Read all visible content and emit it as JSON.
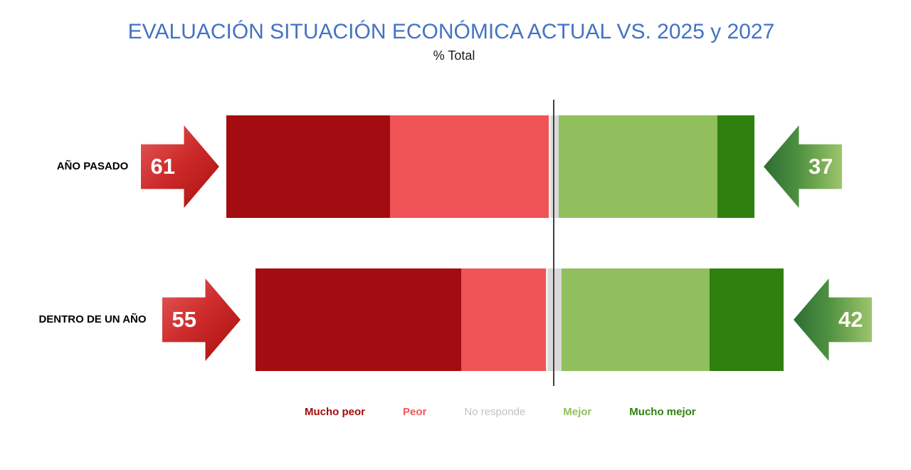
{
  "header": {
    "title": "EVALUACIÓN SITUACIÓN ECONÓMICA ACTUAL VS. 2025 y 2027",
    "subtitle": "% Total"
  },
  "chart_data": {
    "type": "bar",
    "variant": "horizontal-diverging-stacked",
    "title": "EVALUACIÓN SITUACIÓN ECONÓMICA ACTUAL VS. 2025 y 2027",
    "subtitle": "% Total",
    "categories": [
      "AÑO PASADO",
      "DENTRO DE UN AÑO"
    ],
    "series": [
      {
        "name": "Mucho peor",
        "color": "#a30c10",
        "label_color": "#a30c10",
        "bold_legend": true,
        "values": [
          31,
          39
        ]
      },
      {
        "name": "Peor",
        "color": "#f05456",
        "label_color": "#ef5658",
        "bold_legend": true,
        "values": [
          30,
          16
        ]
      },
      {
        "name": "No responde",
        "color": "#d9d9d9",
        "label_color": "#c2c2c2",
        "bold_legend": false,
        "values": [
          2,
          3
        ]
      },
      {
        "name": "Mejor",
        "color": "#92bf5e",
        "label_color": "#92bf5e",
        "bold_legend": true,
        "values": [
          30,
          28
        ]
      },
      {
        "name": "Mucho mejor",
        "color": "#2e810e",
        "label_color": "#2e810e",
        "bold_legend": true,
        "values": [
          7,
          14
        ]
      }
    ],
    "totals": {
      "worse": [
        61,
        55
      ],
      "better": [
        37,
        42
      ]
    },
    "xlim": [
      0,
      100
    ],
    "axes": "hidden",
    "grid": false,
    "legend_position": "bottom",
    "divider": "center line between negative and positive halves",
    "accent_colors": {
      "title_blue": "#4472C4",
      "worse_arrow": "red gradient",
      "better_arrow": "green gradient",
      "divider_line": "#404040"
    }
  }
}
